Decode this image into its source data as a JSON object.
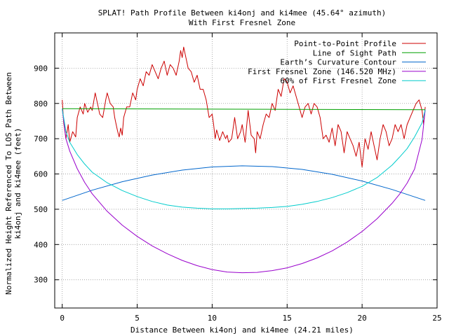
{
  "chart_data": {
    "type": "line",
    "title": "SPLAT! Path Profile Between ki4onj and ki4mee (45.64° azimuth)",
    "subtitle": "With First Fresnel Zone",
    "xlabel": "Distance Between ki4onj and ki4mee (24.21 miles)",
    "ylabel_line1": "Normalized Height Referenced To LOS Path Between",
    "ylabel_line2": "ki4onj and ki4mee (feet)",
    "xlim": [
      -0.5,
      25
    ],
    "ylim": [
      220,
      1000
    ],
    "x_ticks": [
      0,
      5,
      10,
      15,
      20,
      25
    ],
    "y_ticks": [
      300,
      400,
      500,
      600,
      700,
      800,
      900
    ],
    "grid": true,
    "legend_position": "top-right",
    "series": [
      {
        "name": "Point-to-Point Profile",
        "color": "#cc0000",
        "x": [
          0,
          0.1,
          0.25,
          0.4,
          0.5,
          0.7,
          0.9,
          1.0,
          1.2,
          1.4,
          1.5,
          1.7,
          1.9,
          2.0,
          2.2,
          2.4,
          2.5,
          2.7,
          2.9,
          3.0,
          3.2,
          3.4,
          3.5,
          3.6,
          3.7,
          3.8,
          3.9,
          4.0,
          4.1,
          4.3,
          4.5,
          4.7,
          4.9,
          5.0,
          5.2,
          5.4,
          5.6,
          5.8,
          6.0,
          6.2,
          6.4,
          6.6,
          6.8,
          7.0,
          7.2,
          7.4,
          7.6,
          7.8,
          7.9,
          8.0,
          8.1,
          8.2,
          8.4,
          8.6,
          8.8,
          9.0,
          9.2,
          9.4,
          9.6,
          9.8,
          10.0,
          10.1,
          10.2,
          10.3,
          10.5,
          10.7,
          10.9,
          11.0,
          11.1,
          11.3,
          11.5,
          11.7,
          11.9,
          12.0,
          12.2,
          12.4,
          12.6,
          12.8,
          12.9,
          13.0,
          13.2,
          13.4,
          13.6,
          13.8,
          14.0,
          14.2,
          14.4,
          14.6,
          14.8,
          15.0,
          15.2,
          15.4,
          15.6,
          15.8,
          16.0,
          16.2,
          16.4,
          16.6,
          16.8,
          17.0,
          17.2,
          17.4,
          17.6,
          17.8,
          18.0,
          18.2,
          18.4,
          18.6,
          18.8,
          19.0,
          19.2,
          19.4,
          19.6,
          19.8,
          20.0,
          20.2,
          20.4,
          20.6,
          20.8,
          21.0,
          21.2,
          21.4,
          21.6,
          21.8,
          22.0,
          22.2,
          22.4,
          22.6,
          22.8,
          23.0,
          23.2,
          23.4,
          23.6,
          23.8,
          24.0,
          24.1,
          24.21
        ],
        "values": [
          810,
          745,
          700,
          740,
          690,
          720,
          705,
          760,
          790,
          770,
          800,
          775,
          790,
          780,
          830,
          790,
          770,
          760,
          810,
          830,
          800,
          790,
          760,
          740,
          720,
          705,
          730,
          710,
          760,
          790,
          790,
          830,
          810,
          840,
          870,
          850,
          890,
          880,
          910,
          890,
          870,
          900,
          920,
          880,
          910,
          900,
          880,
          920,
          950,
          930,
          960,
          940,
          900,
          890,
          860,
          880,
          840,
          840,
          810,
          760,
          770,
          740,
          700,
          725,
          695,
          720,
          700,
          710,
          690,
          700,
          760,
          700,
          720,
          740,
          690,
          780,
          710,
          700,
          660,
          720,
          700,
          740,
          770,
          760,
          800,
          780,
          840,
          820,
          870,
          860,
          830,
          850,
          820,
          790,
          760,
          790,
          800,
          770,
          800,
          790,
          760,
          700,
          710,
          690,
          730,
          680,
          740,
          720,
          660,
          720,
          700,
          680,
          650,
          690,
          620,
          700,
          670,
          720,
          680,
          640,
          700,
          740,
          720,
          680,
          700,
          740,
          720,
          740,
          700,
          740,
          760,
          780,
          800,
          810,
          780,
          740,
          790
        ]
      },
      {
        "name": "Line of Sight Path",
        "color": "#00a000",
        "x": [
          0,
          24.21
        ],
        "values": [
          785,
          782
        ]
      },
      {
        "name": "Earth’s Curvature Contour",
        "color": "#0066cc",
        "x": [
          0,
          2,
          4,
          6,
          8,
          10,
          12,
          14,
          16,
          18,
          20,
          22,
          24.21
        ],
        "values": [
          525,
          554,
          578,
          597,
          611,
          620,
          623,
          621,
          613,
          599,
          580,
          556,
          525
        ]
      },
      {
        "name": "First Fresnel Zone (146.520 MHz)",
        "color": "#9900cc",
        "x": [
          0,
          0.25,
          0.5,
          1,
          1.5,
          2,
          3,
          4,
          5,
          6,
          7,
          8,
          9,
          10,
          11,
          12,
          13,
          14,
          15,
          16,
          17,
          18,
          19,
          20,
          21,
          22,
          22.5,
          23,
          23.5,
          24,
          24.21
        ],
        "values": [
          785,
          700,
          665,
          615,
          576,
          544,
          494,
          455,
          423,
          396,
          374,
          355,
          340,
          329,
          322,
          320,
          321,
          326,
          334,
          346,
          362,
          382,
          407,
          437,
          473,
          517,
          543,
          574,
          614,
          698,
          782
        ]
      },
      {
        "name": "60% of First Fresnel Zone",
        "color": "#00cccc",
        "x": [
          0,
          0.25,
          0.5,
          1,
          1.5,
          2,
          3,
          4,
          5,
          6,
          7,
          8,
          9,
          10,
          11,
          12,
          13,
          14,
          15,
          16,
          17,
          18,
          19,
          20,
          21,
          22,
          22.5,
          23,
          23.5,
          24,
          24.21
        ],
        "values": [
          785,
          720,
          690,
          655,
          628,
          605,
          575,
          553,
          536,
          522,
          512,
          506,
          503,
          501,
          501,
          502,
          503,
          505,
          508,
          514,
          522,
          533,
          547,
          565,
          590,
          625,
          648,
          672,
          705,
          745,
          782
        ]
      }
    ]
  }
}
